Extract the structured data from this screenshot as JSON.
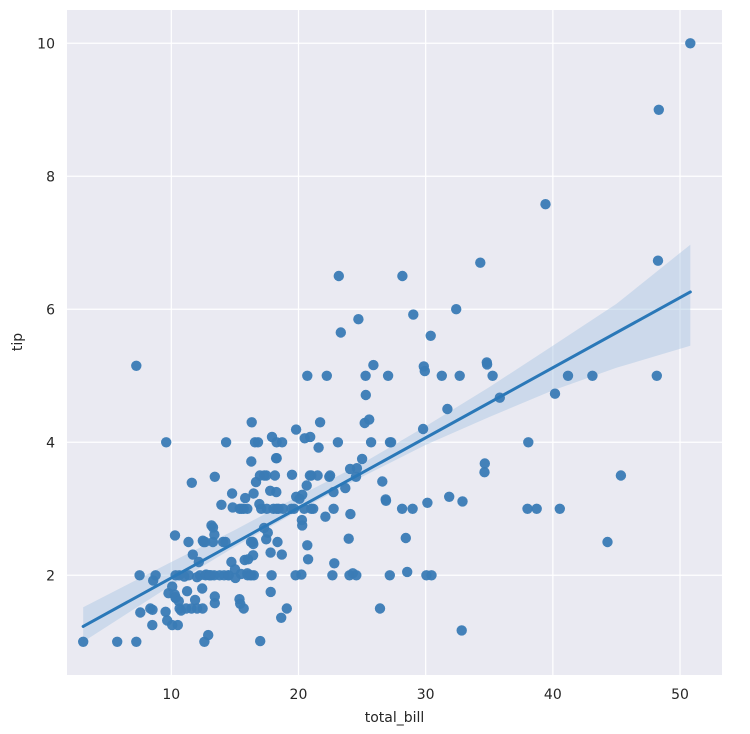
{
  "chart_data": {
    "type": "scatter",
    "title": "",
    "xlabel": "total_bill",
    "ylabel": "tip",
    "xlim": [
      1.8,
      53.3
    ],
    "ylim": [
      0.5,
      10.5
    ],
    "xticks": [
      10,
      20,
      30,
      40,
      50
    ],
    "yticks": [
      2,
      4,
      6,
      8,
      10
    ],
    "grid": true,
    "background": "#eaeaf2",
    "colors": {
      "points": "#3a7bb5",
      "regression_line": "#2a78b8",
      "confidence_band": "#a9c6e3"
    },
    "regression": {
      "x": [
        3.07,
        50.81
      ],
      "y": [
        1.23,
        6.26
      ],
      "ci_x": [
        3.07,
        10,
        15,
        20,
        25,
        30,
        35,
        40,
        45,
        50.81
      ],
      "ci_low": [
        1.0,
        1.85,
        2.43,
        2.97,
        3.48,
        3.96,
        4.38,
        4.78,
        5.12,
        5.45
      ],
      "ci_high": [
        1.52,
        2.2,
        2.68,
        3.19,
        3.68,
        4.24,
        4.83,
        5.45,
        6.08,
        6.97
      ]
    },
    "points": [
      [
        3.07,
        1.0
      ],
      [
        5.75,
        1.0
      ],
      [
        7.25,
        1.0
      ],
      [
        7.25,
        5.15
      ],
      [
        7.51,
        2.0
      ],
      [
        7.56,
        1.44
      ],
      [
        8.35,
        1.5
      ],
      [
        8.51,
        1.25
      ],
      [
        8.52,
        1.48
      ],
      [
        8.58,
        1.92
      ],
      [
        8.77,
        2.0
      ],
      [
        9.55,
        1.45
      ],
      [
        9.6,
        4.0
      ],
      [
        9.68,
        1.32
      ],
      [
        9.78,
        1.73
      ],
      [
        10.07,
        1.25
      ],
      [
        10.07,
        1.83
      ],
      [
        10.27,
        1.71
      ],
      [
        10.29,
        2.6
      ],
      [
        10.33,
        1.67
      ],
      [
        10.34,
        1.66
      ],
      [
        10.34,
        2.0
      ],
      [
        10.51,
        1.25
      ],
      [
        10.59,
        1.61
      ],
      [
        10.63,
        2.0
      ],
      [
        10.65,
        1.5
      ],
      [
        10.77,
        1.47
      ],
      [
        11.02,
        1.98
      ],
      [
        11.17,
        1.5
      ],
      [
        11.24,
        1.76
      ],
      [
        11.35,
        2.5
      ],
      [
        11.38,
        2.0
      ],
      [
        11.59,
        1.5
      ],
      [
        11.61,
        3.39
      ],
      [
        11.69,
        2.31
      ],
      [
        11.87,
        1.63
      ],
      [
        12.02,
        1.97
      ],
      [
        12.03,
        1.5
      ],
      [
        12.16,
        2.2
      ],
      [
        12.26,
        2.0
      ],
      [
        12.43,
        1.8
      ],
      [
        12.46,
        1.5
      ],
      [
        12.48,
        2.52
      ],
      [
        12.54,
        2.5
      ],
      [
        12.6,
        1.0
      ],
      [
        12.66,
        2.5
      ],
      [
        12.69,
        2.0
      ],
      [
        12.74,
        2.01
      ],
      [
        12.9,
        1.1
      ],
      [
        13.0,
        2.0
      ],
      [
        13.03,
        2.0
      ],
      [
        13.13,
        2.0
      ],
      [
        13.16,
        2.75
      ],
      [
        13.27,
        2.5
      ],
      [
        13.28,
        2.72
      ],
      [
        13.37,
        2.0
      ],
      [
        13.39,
        2.61
      ],
      [
        13.42,
        3.48
      ],
      [
        13.42,
        1.58
      ],
      [
        13.42,
        1.68
      ],
      [
        13.81,
        2.0
      ],
      [
        13.94,
        3.06
      ],
      [
        14.07,
        2.5
      ],
      [
        14.15,
        2.0
      ],
      [
        14.26,
        2.5
      ],
      [
        14.31,
        4.0
      ],
      [
        14.48,
        2.0
      ],
      [
        14.52,
        2.0
      ],
      [
        14.73,
        2.2
      ],
      [
        14.78,
        3.23
      ],
      [
        14.83,
        3.02
      ],
      [
        15.01,
        2.09
      ],
      [
        15.04,
        1.96
      ],
      [
        15.36,
        1.64
      ],
      [
        15.38,
        3.0
      ],
      [
        15.42,
        1.57
      ],
      [
        15.48,
        2.02
      ],
      [
        15.53,
        3.0
      ],
      [
        15.69,
        1.5
      ],
      [
        15.69,
        3.0
      ],
      [
        15.77,
        2.23
      ],
      [
        15.81,
        3.16
      ],
      [
        15.98,
        2.03
      ],
      [
        15.98,
        3.0
      ],
      [
        16.0,
        2.0
      ],
      [
        16.04,
        2.24
      ],
      [
        16.21,
        2.0
      ],
      [
        16.27,
        2.5
      ],
      [
        16.29,
        3.71
      ],
      [
        16.31,
        2.0
      ],
      [
        16.32,
        4.3
      ],
      [
        16.4,
        2.5
      ],
      [
        16.43,
        2.3
      ],
      [
        16.45,
        2.47
      ],
      [
        16.47,
        3.23
      ],
      [
        16.49,
        2.0
      ],
      [
        16.58,
        4.0
      ],
      [
        16.66,
        3.4
      ],
      [
        16.82,
        4.0
      ],
      [
        16.93,
        3.07
      ],
      [
        16.97,
        3.5
      ],
      [
        16.99,
        1.01
      ],
      [
        17.07,
        3.0
      ],
      [
        17.29,
        2.71
      ],
      [
        17.31,
        3.5
      ],
      [
        17.46,
        2.54
      ],
      [
        17.47,
        3.5
      ],
      [
        17.51,
        3.0
      ],
      [
        17.59,
        2.64
      ],
      [
        17.78,
        3.27
      ],
      [
        17.81,
        2.34
      ],
      [
        17.82,
        1.75
      ],
      [
        17.89,
        2.0
      ],
      [
        17.92,
        4.08
      ],
      [
        18.04,
        3.0
      ],
      [
        18.15,
        3.5
      ],
      [
        18.24,
        3.76
      ],
      [
        18.26,
        3.25
      ],
      [
        18.28,
        4.0
      ],
      [
        18.29,
        3.76
      ],
      [
        18.29,
        3.0
      ],
      [
        18.35,
        2.5
      ],
      [
        18.43,
        3.0
      ],
      [
        18.64,
        1.36
      ],
      [
        18.69,
        2.31
      ],
      [
        18.71,
        4.0
      ],
      [
        18.78,
        3.0
      ],
      [
        19.08,
        1.5
      ],
      [
        19.44,
        3.0
      ],
      [
        19.49,
        3.51
      ],
      [
        19.65,
        3.0
      ],
      [
        19.77,
        2.0
      ],
      [
        19.81,
        4.19
      ],
      [
        19.82,
        3.18
      ],
      [
        20.08,
        3.15
      ],
      [
        20.23,
        2.01
      ],
      [
        20.27,
        2.83
      ],
      [
        20.29,
        2.75
      ],
      [
        20.29,
        3.21
      ],
      [
        20.45,
        3.0
      ],
      [
        20.49,
        4.06
      ],
      [
        20.65,
        3.35
      ],
      [
        20.69,
        5.0
      ],
      [
        20.69,
        2.45
      ],
      [
        20.76,
        2.24
      ],
      [
        20.9,
        3.5
      ],
      [
        20.92,
        4.08
      ],
      [
        21.01,
        3.5
      ],
      [
        21.01,
        3.0
      ],
      [
        21.16,
        3.0
      ],
      [
        21.5,
        3.5
      ],
      [
        21.58,
        3.92
      ],
      [
        21.7,
        4.3
      ],
      [
        22.12,
        2.88
      ],
      [
        22.23,
        5.0
      ],
      [
        22.42,
        3.48
      ],
      [
        22.49,
        3.5
      ],
      [
        22.67,
        2.0
      ],
      [
        22.75,
        3.25
      ],
      [
        22.76,
        3.0
      ],
      [
        22.82,
        2.18
      ],
      [
        23.1,
        4.0
      ],
      [
        23.17,
        6.5
      ],
      [
        23.33,
        5.65
      ],
      [
        23.68,
        3.31
      ],
      [
        23.95,
        2.55
      ],
      [
        24.01,
        2.0
      ],
      [
        24.06,
        3.6
      ],
      [
        24.08,
        2.92
      ],
      [
        24.27,
        2.03
      ],
      [
        24.52,
        3.48
      ],
      [
        24.55,
        2.0
      ],
      [
        24.59,
        3.61
      ],
      [
        24.71,
        5.85
      ],
      [
        25.0,
        3.75
      ],
      [
        25.21,
        4.29
      ],
      [
        25.28,
        5.0
      ],
      [
        25.29,
        4.71
      ],
      [
        25.56,
        4.34
      ],
      [
        25.71,
        4.0
      ],
      [
        25.89,
        5.16
      ],
      [
        26.41,
        1.5
      ],
      [
        26.59,
        3.41
      ],
      [
        26.86,
        3.14
      ],
      [
        26.88,
        3.12
      ],
      [
        27.05,
        5.0
      ],
      [
        27.18,
        2.0
      ],
      [
        27.2,
        4.0
      ],
      [
        27.28,
        4.0
      ],
      [
        28.15,
        3.0
      ],
      [
        28.17,
        6.5
      ],
      [
        28.44,
        2.56
      ],
      [
        28.55,
        2.05
      ],
      [
        28.97,
        3.0
      ],
      [
        29.03,
        5.92
      ],
      [
        29.8,
        4.2
      ],
      [
        29.85,
        5.14
      ],
      [
        29.93,
        5.07
      ],
      [
        30.06,
        2.0
      ],
      [
        30.14,
        3.09
      ],
      [
        30.4,
        5.6
      ],
      [
        30.46,
        2.0
      ],
      [
        31.27,
        5.0
      ],
      [
        31.71,
        4.5
      ],
      [
        31.85,
        3.18
      ],
      [
        32.4,
        6.0
      ],
      [
        32.68,
        5.0
      ],
      [
        32.83,
        1.17
      ],
      [
        32.9,
        3.11
      ],
      [
        34.3,
        6.7
      ],
      [
        34.63,
        3.55
      ],
      [
        34.65,
        3.68
      ],
      [
        34.81,
        5.2
      ],
      [
        34.83,
        5.17
      ],
      [
        35.26,
        5.0
      ],
      [
        35.83,
        4.67
      ],
      [
        38.01,
        3.0
      ],
      [
        38.07,
        4.0
      ],
      [
        38.73,
        3.0
      ],
      [
        39.42,
        7.58
      ],
      [
        40.17,
        4.73
      ],
      [
        40.55,
        3.0
      ],
      [
        41.19,
        5.0
      ],
      [
        43.11,
        5.0
      ],
      [
        44.3,
        2.5
      ],
      [
        45.35,
        3.5
      ],
      [
        48.17,
        5.0
      ],
      [
        48.27,
        6.73
      ],
      [
        48.33,
        9.0
      ],
      [
        50.81,
        10.0
      ]
    ]
  }
}
